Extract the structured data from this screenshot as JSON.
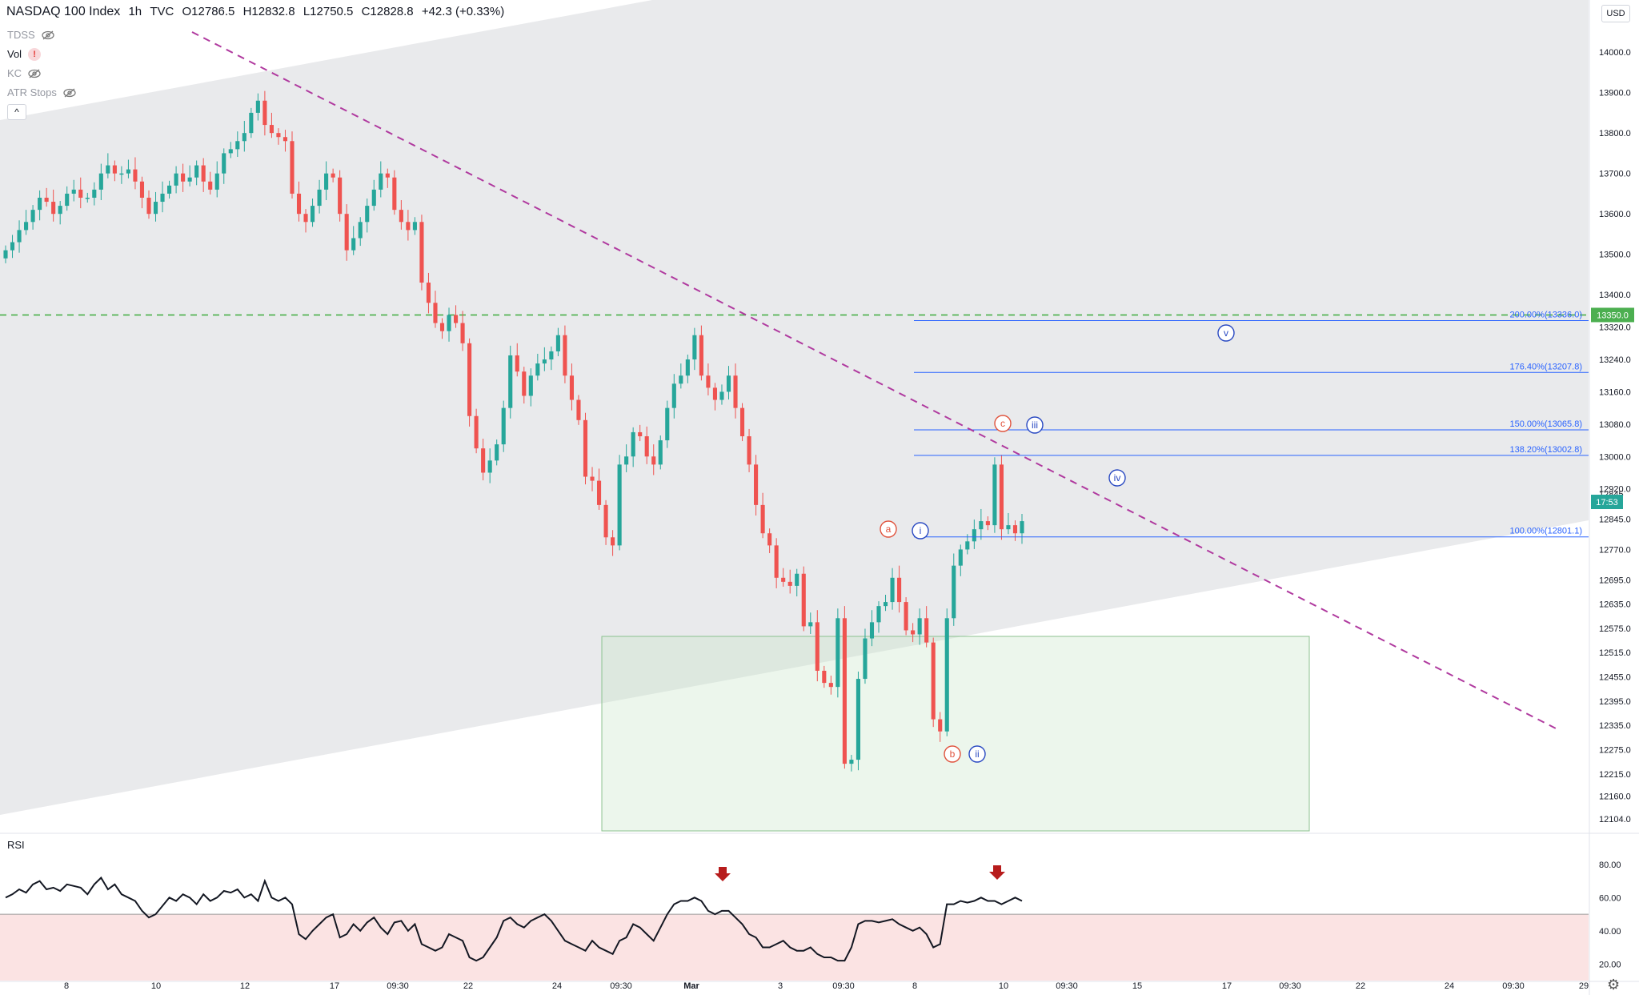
{
  "header": {
    "symbol": "NASDAQ 100 Index",
    "interval": "1h",
    "source": "TVC",
    "o_label": "O",
    "o_value": "12786.5",
    "h_label": "H",
    "h_value": "12832.8",
    "l_label": "L",
    "l_value": "12750.5",
    "c_label": "C",
    "c_value": "12828.8",
    "change": "+42.3 (+0.33%)"
  },
  "indicators": [
    {
      "name": "TDSS",
      "icon": "eye-off-icon"
    },
    {
      "name": "Vol",
      "icon": "alert-icon",
      "alert_glyph": "!"
    },
    {
      "name": "KC",
      "icon": "eye-off-icon"
    },
    {
      "name": "ATR Stops",
      "icon": "eye-off-icon"
    }
  ],
  "collapse_glyph": "^",
  "currency": "USD",
  "rsi_label": "RSI",
  "settings_glyph": "⚙",
  "colors": {
    "up": "#26a69a",
    "down": "#ef5350",
    "fib": "#2962ff",
    "trend": "#b03a9f",
    "level_line": "#3cab3c",
    "wave_red": "#e0533d",
    "wave_blue": "#2949c2",
    "arrow": "#b71c1c",
    "rsi_band": "#fbe3e3",
    "channel": "#e9eaec"
  },
  "chart_data": {
    "type": "candlestick",
    "price_axis": {
      "ticks": [
        "14000.0",
        "13900.0",
        "13800.0",
        "13700.0",
        "13600.0",
        "13500.0",
        "13400.0",
        "13320.0",
        "13240.0",
        "13160.0",
        "13080.0",
        "13000.0",
        "12920.0",
        "12845.0",
        "12770.0",
        "12695.0",
        "12635.0",
        "12575.0",
        "12515.0",
        "12455.0",
        "12395.0",
        "12335.0",
        "12275.0",
        "12215.0",
        "12160.0",
        "12104.0"
      ],
      "range": [
        12070,
        14030
      ]
    },
    "time_axis": [
      "8",
      "10",
      "12",
      "17",
      "09:30",
      "22",
      "24",
      "09:30",
      "Mar",
      "3",
      "09:30",
      "8",
      "10",
      "09:30",
      "15",
      "17",
      "09:30",
      "22",
      "24",
      "09:30",
      "29"
    ],
    "price_tags": {
      "horizontal_level": "13350.0",
      "countdown": "17:53",
      "partial_price": "12845"
    },
    "series": [
      {
        "name": "NASDAQ 100 Index",
        "closes": [
          13510,
          13530,
          13560,
          13580,
          13610,
          13640,
          13630,
          13600,
          13620,
          13650,
          13660,
          13640,
          13640,
          13660,
          13700,
          13720,
          13700,
          13700,
          13710,
          13680,
          13640,
          13600,
          13630,
          13650,
          13670,
          13700,
          13680,
          13690,
          13720,
          13680,
          13660,
          13700,
          13750,
          13760,
          13780,
          13800,
          13850,
          13880,
          13820,
          13800,
          13790,
          13780,
          13650,
          13600,
          13580,
          13620,
          13660,
          13700,
          13690,
          13600,
          13510,
          13540,
          13580,
          13620,
          13660,
          13700,
          13690,
          13610,
          13580,
          13560,
          13580,
          13430,
          13380,
          13330,
          13310,
          13350,
          13330,
          13280,
          13100,
          13020,
          12960,
          12990,
          13030,
          13120,
          13250,
          13210,
          13150,
          13200,
          13230,
          13240,
          13260,
          13300,
          13200,
          13140,
          13090,
          12950,
          12940,
          12880,
          12800,
          12780,
          12980,
          13000,
          13060,
          13050,
          13000,
          12980,
          13040,
          13120,
          13180,
          13200,
          13240,
          13300,
          13200,
          13170,
          13140,
          13160,
          13200,
          13120,
          13050,
          12980,
          12880,
          12810,
          12780,
          12700,
          12690,
          12680,
          12710,
          12580,
          12590,
          12470,
          12440,
          12430,
          12600,
          12240,
          12250,
          12450,
          12550,
          12590,
          12630,
          12640,
          12700,
          12640,
          12570,
          12560,
          12600,
          12540,
          12350,
          12320,
          12600,
          12730,
          12770,
          12790,
          12820,
          12840,
          12830,
          12980,
          12820,
          12830,
          12810,
          12840
        ]
      },
      {
        "name": "RSI",
        "values": [
          60,
          62,
          65,
          63,
          68,
          70,
          65,
          66,
          64,
          68,
          67,
          66,
          62,
          68,
          72,
          65,
          68,
          62,
          60,
          58,
          52,
          48,
          50,
          55,
          60,
          58,
          62,
          60,
          56,
          62,
          58,
          60,
          64,
          63,
          65,
          60,
          62,
          58,
          70,
          60,
          58,
          60,
          56,
          38,
          35,
          40,
          44,
          48,
          50,
          36,
          38,
          44,
          40,
          45,
          48,
          42,
          38,
          45,
          46,
          40,
          44,
          32,
          30,
          28,
          30,
          38,
          36,
          34,
          24,
          22,
          24,
          30,
          36,
          46,
          48,
          44,
          42,
          46,
          48,
          50,
          46,
          40,
          34,
          32,
          30,
          28,
          34,
          30,
          28,
          26,
          34,
          36,
          44,
          42,
          38,
          34,
          42,
          50,
          56,
          58,
          58,
          60,
          58,
          52,
          50,
          52,
          52,
          48,
          44,
          38,
          36,
          30,
          30,
          32,
          34,
          30,
          28,
          28,
          30,
          26,
          24,
          24,
          22,
          22,
          30,
          44,
          46,
          46,
          45,
          46,
          47,
          44,
          42,
          40,
          42,
          38,
          30,
          32,
          56,
          56,
          58,
          57,
          58,
          60,
          58,
          58,
          56,
          58,
          60,
          58
        ]
      }
    ],
    "rsi_axis": {
      "ticks": [
        "80.00",
        "60.00",
        "40.00",
        "20.00"
      ],
      "range": [
        10,
        92
      ],
      "overbought": 50
    },
    "fib_levels": [
      {
        "label": "200.00%(13336.0)",
        "price": 13336.0
      },
      {
        "label": "176.40%(13207.8)",
        "price": 13207.8
      },
      {
        "label": "150.00%(13065.8)",
        "price": 13065.8
      },
      {
        "label": "138.20%(13002.8)",
        "price": 13002.8
      },
      {
        "label": "100.00%(12801.1)",
        "price": 12801.1
      }
    ],
    "horizontal_level": 13350,
    "wave_labels": [
      {
        "text": "a",
        "color": "red"
      },
      {
        "text": "b",
        "color": "red"
      },
      {
        "text": "c",
        "color": "red"
      },
      {
        "text": "i",
        "color": "blue"
      },
      {
        "text": "ii",
        "color": "blue"
      },
      {
        "text": "iii",
        "color": "blue"
      },
      {
        "text": "iv",
        "color": "blue"
      },
      {
        "text": "v",
        "color": "blue"
      }
    ]
  }
}
